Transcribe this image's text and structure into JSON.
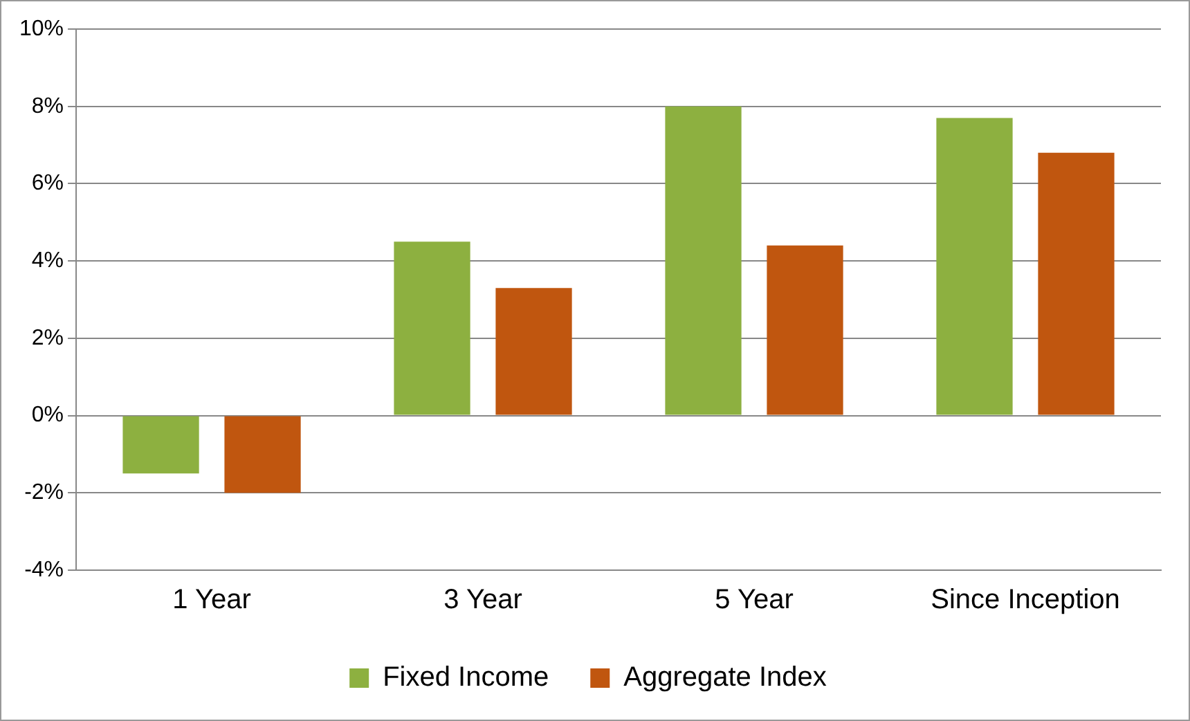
{
  "chart_data": {
    "type": "bar",
    "categories": [
      "1 Year",
      "3 Year",
      "5 Year",
      "Since Inception"
    ],
    "series": [
      {
        "name": "Fixed Income",
        "color": "#8db040",
        "values": [
          -1.5,
          4.5,
          8.0,
          7.7
        ]
      },
      {
        "name": "Aggregate Index",
        "color": "#c0560f",
        "values": [
          -2.0,
          3.3,
          4.4,
          6.8
        ]
      }
    ],
    "ylim": [
      -4,
      10
    ],
    "yticks": [
      {
        "value": -4,
        "label": "-4%"
      },
      {
        "value": -2,
        "label": "-2%"
      },
      {
        "value": 0,
        "label": "0%"
      },
      {
        "value": 2,
        "label": "2%"
      },
      {
        "value": 4,
        "label": "4%"
      },
      {
        "value": 6,
        "label": "6%"
      },
      {
        "value": 8,
        "label": "8%"
      },
      {
        "value": 10,
        "label": "10%"
      }
    ],
    "grid": "y",
    "legend": "bottom"
  }
}
